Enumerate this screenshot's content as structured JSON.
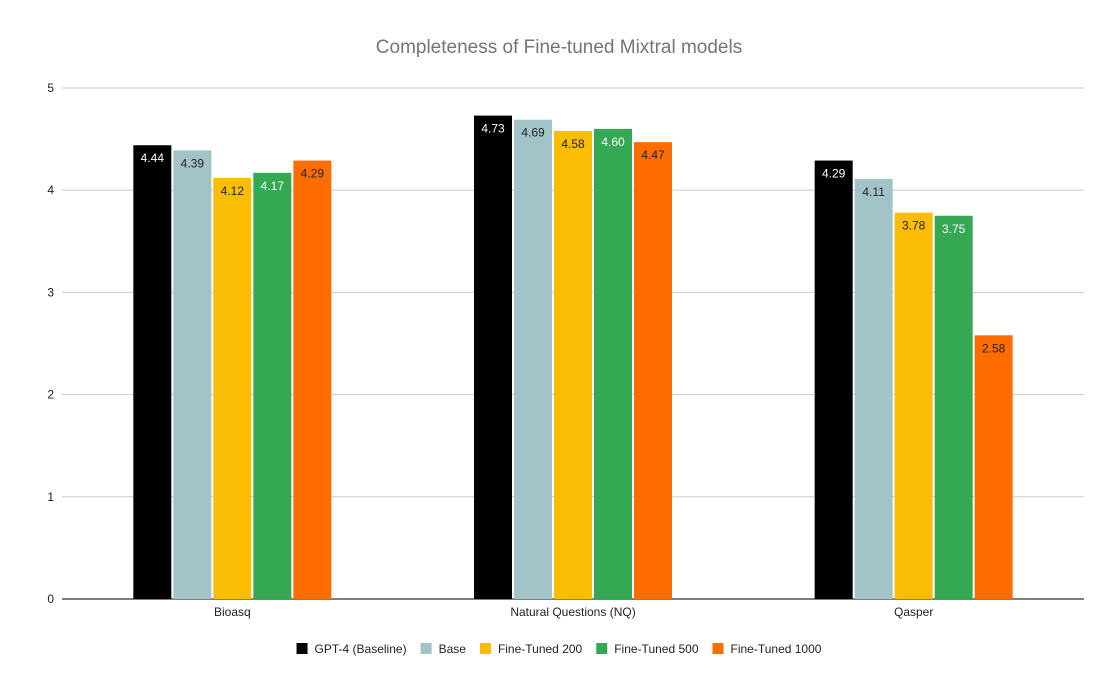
{
  "chart_data": {
    "type": "bar",
    "title": "Completeness of Fine-tuned Mixtral models",
    "xlabel": "",
    "ylabel": "",
    "ylim": [
      0,
      5
    ],
    "yticks": [
      0,
      1,
      2,
      3,
      4,
      5
    ],
    "grid": true,
    "legend_position": "bottom",
    "categories": [
      "Bioasq",
      "Natural Questions (NQ)",
      "Qasper"
    ],
    "series": [
      {
        "name": "GPT-4 (Baseline)",
        "color": "#000000",
        "label_color": "#ffffff",
        "values": [
          4.44,
          4.73,
          4.29
        ],
        "labels": [
          "4.44",
          "4.73",
          "4.29"
        ]
      },
      {
        "name": "Base",
        "color": "#a2c4c9",
        "label_color": "#222222",
        "values": [
          4.39,
          4.69,
          4.11
        ],
        "labels": [
          "4.39",
          "4.69",
          "4.11"
        ]
      },
      {
        "name": "Fine-Tuned 200",
        "color": "#fbbc04",
        "label_color": "#222222",
        "values": [
          4.12,
          4.58,
          3.78
        ],
        "labels": [
          "4.12",
          "4.58",
          "3.78"
        ]
      },
      {
        "name": "Fine-Tuned 500",
        "color": "#34a853",
        "label_color": "#ffffff",
        "values": [
          4.17,
          4.6,
          3.75
        ],
        "labels": [
          "4.17",
          "4.60",
          "3.75"
        ]
      },
      {
        "name": "Fine-Tuned 1000",
        "color": "#ff6d01",
        "label_color": "#222222",
        "values": [
          4.29,
          4.47,
          2.58
        ],
        "labels": [
          "4.29",
          "4.47",
          "2.58"
        ]
      }
    ]
  }
}
